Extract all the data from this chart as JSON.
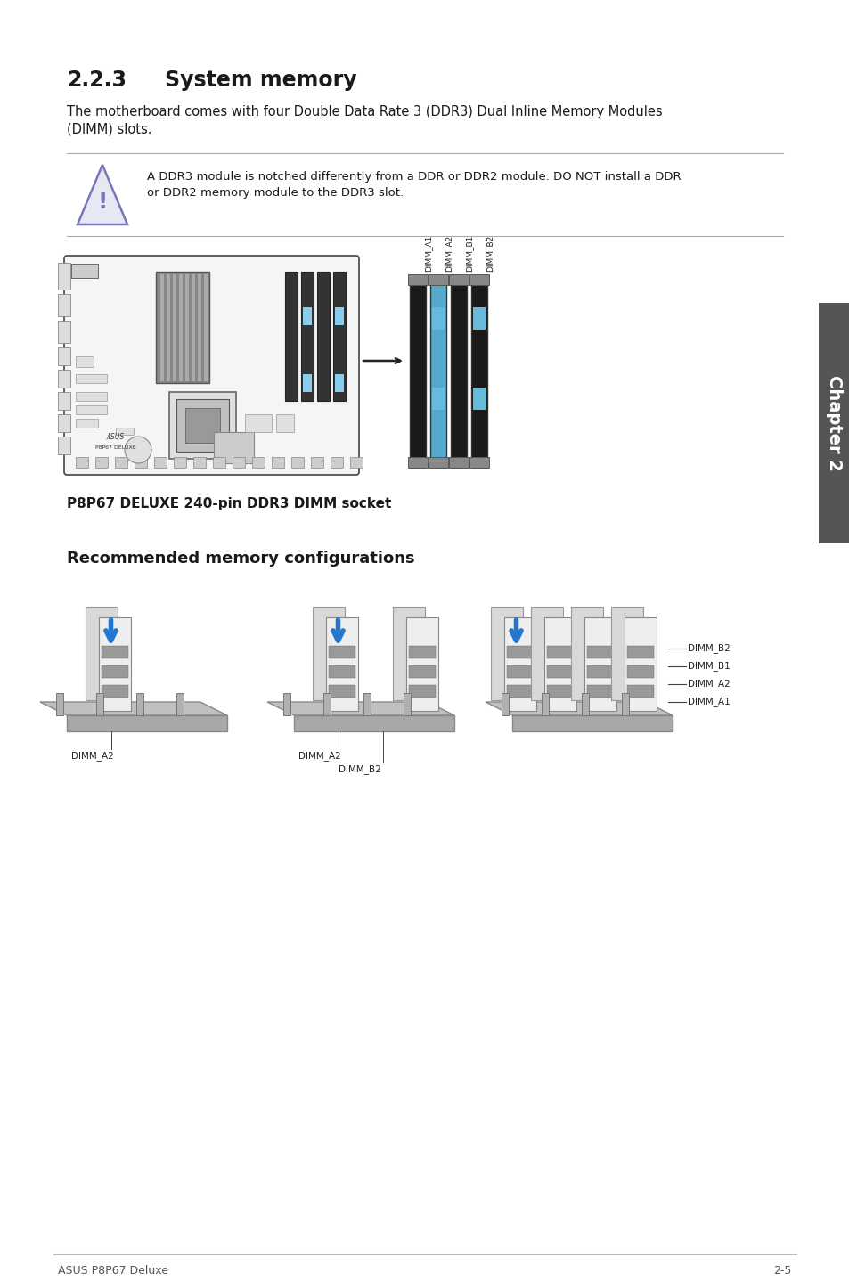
{
  "title_num": "2.2.3",
  "title_text": "System memory",
  "body_text_line1": "The motherboard comes with four Double Data Rate 3 (DDR3) Dual Inline Memory Modules",
  "body_text_line2": "(DIMM) slots.",
  "warning_text_line1": "A DDR3 module is notched differently from a DDR or DDR2 module. DO NOT install a DDR",
  "warning_text_line2": "or DDR2 memory module to the DDR3 slot.",
  "motherboard_caption": "P8P67 DELUXE 240-pin DDR3 DIMM socket",
  "rec_title": "Recommended memory configurations",
  "footer_left": "ASUS P8P67 Deluxe",
  "footer_right": "2-5",
  "chapter_label": "Chapter 2",
  "bg_color": "#ffffff",
  "text_color": "#1a1a1a",
  "chapter_bg": "#555555",
  "chapter_text": "#ffffff",
  "warning_line_color": "#aaaaaa",
  "title_fontsize": 17,
  "body_fontsize": 10.5,
  "warn_fontsize": 9.5,
  "caption_fontsize": 11,
  "rec_fontsize": 13,
  "footer_fontsize": 9,
  "chapter_fontsize": 14
}
